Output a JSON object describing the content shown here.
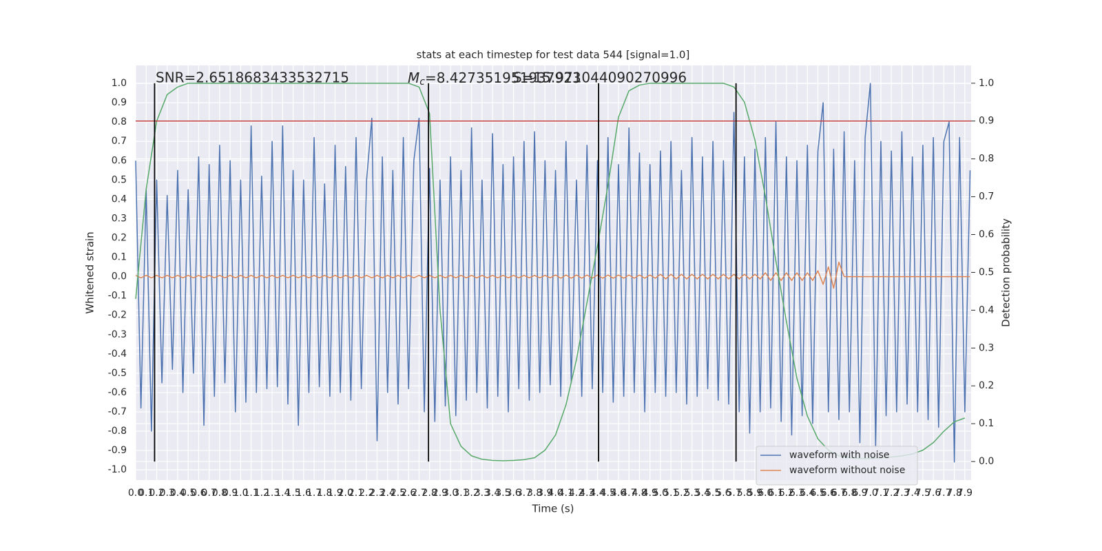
{
  "chart_data": {
    "type": "line",
    "title": "stats at each timestep for test data 544 [signal=1.0]",
    "xlabel": "Time (s)",
    "ylabel": "Whitened strain",
    "y2label": "Detection probability",
    "annotations": [
      {
        "text": "SNR=2.6518683433532715"
      },
      {
        "symbol": "M",
        "subscript": "c",
        "text": "=8.427351951937923"
      },
      {
        "text": "S=15.971044090270996"
      }
    ],
    "grid": true,
    "legend": "lower right",
    "xlim": [
      0,
      7.96
    ],
    "ylim": [
      -1.053,
      1.093
    ],
    "y2lim": [
      -0.049,
      1.047
    ],
    "xticks": [
      {
        "value": 0,
        "label": "0.0"
      },
      0.1,
      0.2,
      0.3,
      0.4,
      0.5,
      0.6,
      0.7,
      0.8,
      0.9,
      {
        "value": 1,
        "label": "1.0"
      },
      1.1,
      1.2,
      1.3,
      1.4,
      1.5,
      1.6,
      1.7,
      1.8,
      1.9,
      {
        "value": 2,
        "label": "2.0"
      },
      2.1,
      2.2,
      2.3,
      2.4,
      2.5,
      2.6,
      2.7,
      2.8,
      2.9,
      {
        "value": 3,
        "label": "3.0"
      },
      3.1,
      3.2,
      3.3,
      3.4,
      3.5,
      3.6,
      3.7,
      3.8,
      3.9,
      {
        "value": 4,
        "label": "4.0"
      },
      4.1,
      4.2,
      4.3,
      4.4,
      4.5,
      4.6,
      4.7,
      4.8,
      4.9,
      {
        "value": 5,
        "label": "5.0"
      },
      5.1,
      5.2,
      5.3,
      5.4,
      5.5,
      5.6,
      5.7,
      5.8,
      5.9,
      {
        "value": 6,
        "label": "6.0"
      },
      6.1,
      6.2,
      6.3,
      6.4,
      6.5,
      6.6,
      6.7,
      6.8,
      6.9,
      {
        "value": 7,
        "label": "7.0"
      },
      7.1,
      7.2,
      7.3,
      7.4,
      7.5,
      7.6,
      7.7,
      7.8,
      7.9
    ],
    "yticks": [
      {
        "value": -1,
        "label": "-1.0"
      },
      -0.9,
      -0.8,
      -0.7,
      -0.6,
      -0.5,
      -0.4,
      -0.3,
      -0.2,
      -0.1,
      {
        "value": 0,
        "label": "0.0"
      },
      0.1,
      0.2,
      0.3,
      0.4,
      0.5,
      0.6,
      0.7,
      0.8,
      0.9,
      {
        "value": 1,
        "label": "1.0"
      }
    ],
    "y2ticks": [
      {
        "value": 0,
        "label": "0.0"
      },
      0.1,
      0.2,
      0.3,
      0.4,
      0.5,
      0.6,
      0.7,
      0.8,
      0.9,
      {
        "value": 1,
        "label": "1.0"
      }
    ],
    "x": [
      0,
      0.05,
      0.1,
      0.15,
      0.2,
      0.25,
      0.3,
      0.35,
      0.4,
      0.45,
      0.5,
      0.55,
      0.6,
      0.65,
      0.7,
      0.75,
      0.8,
      0.85,
      0.9,
      0.95,
      1,
      1.05,
      1.1,
      1.15,
      1.2,
      1.25,
      1.3,
      1.35,
      1.4,
      1.45,
      1.5,
      1.55,
      1.6,
      1.65,
      1.7,
      1.75,
      1.8,
      1.85,
      1.9,
      1.95,
      2,
      2.05,
      2.1,
      2.15,
      2.2,
      2.25,
      2.3,
      2.35,
      2.4,
      2.45,
      2.5,
      2.55,
      2.6,
      2.65,
      2.7,
      2.75,
      2.8,
      2.85,
      2.9,
      2.95,
      3,
      3.05,
      3.1,
      3.15,
      3.2,
      3.25,
      3.3,
      3.35,
      3.4,
      3.45,
      3.5,
      3.55,
      3.6,
      3.65,
      3.7,
      3.75,
      3.8,
      3.85,
      3.9,
      3.95,
      4,
      4.05,
      4.1,
      4.15,
      4.2,
      4.25,
      4.3,
      4.35,
      4.4,
      4.45,
      4.5,
      4.55,
      4.6,
      4.65,
      4.7,
      4.75,
      4.8,
      4.85,
      4.9,
      4.95,
      5,
      5.05,
      5.1,
      5.15,
      5.2,
      5.25,
      5.3,
      5.35,
      5.4,
      5.45,
      5.5,
      5.55,
      5.6,
      5.65,
      5.7,
      5.75,
      5.8,
      5.85,
      5.9,
      5.95,
      6,
      6.05,
      6.1,
      6.15,
      6.2,
      6.25,
      6.3,
      6.35,
      6.4,
      6.45,
      6.5,
      6.55,
      6.6,
      6.65,
      6.7,
      6.75,
      6.8,
      6.85,
      6.9,
      6.95,
      7,
      7.05,
      7.1,
      7.15,
      7.2,
      7.25,
      7.3,
      7.35,
      7.4,
      7.45,
      7.5,
      7.55,
      7.6,
      7.65,
      7.7,
      7.75,
      7.8,
      7.85,
      7.9,
      7.95
    ],
    "series": [
      {
        "name": "waveform with noise",
        "color": "#4c72b0",
        "values": [
          0.6,
          -0.68,
          0.45,
          -0.8,
          0.5,
          -0.55,
          0.42,
          -0.48,
          0.55,
          -0.6,
          0.45,
          -0.5,
          0.62,
          -0.77,
          0.58,
          -0.62,
          0.68,
          -0.55,
          0.6,
          -0.7,
          0.5,
          -0.65,
          0.78,
          -0.6,
          0.52,
          -0.58,
          0.7,
          -0.57,
          0.78,
          -0.66,
          0.55,
          -0.77,
          0.5,
          -0.6,
          0.72,
          -0.57,
          0.48,
          -0.62,
          0.68,
          -0.6,
          0.57,
          -0.64,
          0.72,
          -0.58,
          0.5,
          0.82,
          -0.85,
          0.62,
          -0.6,
          0.55,
          -0.66,
          0.72,
          -0.58,
          0.6,
          0.82,
          -0.7,
          0.56,
          -0.75,
          0.5,
          -0.67,
          0.62,
          -0.72,
          0.55,
          -0.64,
          0.77,
          -0.6,
          0.5,
          -0.68,
          0.74,
          -0.62,
          0.58,
          -0.7,
          0.62,
          -0.58,
          0.7,
          -0.64,
          0.75,
          -0.6,
          0.6,
          -0.56,
          0.55,
          -0.62,
          0.7,
          -0.55,
          0.5,
          -0.62,
          0.68,
          -0.58,
          0.6,
          -0.6,
          0.72,
          -0.65,
          0.58,
          -0.62,
          0.77,
          -0.6,
          0.64,
          -0.7,
          0.58,
          -0.6,
          0.65,
          -0.62,
          0.7,
          -0.6,
          0.55,
          -0.66,
          0.72,
          -0.62,
          0.62,
          -0.58,
          0.7,
          -0.64,
          0.6,
          -0.66,
          0.85,
          -0.7,
          0.62,
          -0.81,
          0.66,
          -0.7,
          0.72,
          -0.68,
          0.8,
          -0.75,
          0.62,
          -0.82,
          0.6,
          -0.72,
          0.68,
          -0.76,
          0.65,
          0.9,
          -0.7,
          0.66,
          -0.74,
          0.75,
          -0.7,
          0.6,
          -0.86,
          0.72,
          1.0,
          -0.88,
          0.7,
          -0.72,
          0.65,
          -0.7,
          0.75,
          -0.66,
          0.62,
          -0.7,
          0.68,
          -0.74,
          0.72,
          -0.78,
          0.7,
          0.8,
          -0.96,
          0.72,
          -0.7,
          0.55
        ]
      },
      {
        "name": "waveform without noise",
        "color": "#dd8452",
        "values": [
          0.006,
          -0.006,
          0.006,
          -0.006,
          0.006,
          -0.006,
          0.006,
          -0.006,
          0.006,
          -0.006,
          0.006,
          -0.006,
          0.006,
          -0.006,
          0.006,
          -0.006,
          0.006,
          -0.006,
          0.006,
          -0.006,
          0.006,
          -0.006,
          0.006,
          -0.006,
          0.006,
          -0.006,
          0.006,
          -0.006,
          0.006,
          -0.006,
          0.006,
          -0.006,
          0.006,
          -0.006,
          0.006,
          -0.006,
          0.006,
          -0.006,
          0.006,
          -0.006,
          0.006,
          -0.006,
          0.006,
          -0.006,
          0.006,
          -0.006,
          0.006,
          -0.006,
          0.006,
          -0.006,
          0.006,
          -0.006,
          0.006,
          -0.006,
          0.006,
          -0.006,
          0.006,
          -0.006,
          0.006,
          -0.006,
          0.006,
          -0.006,
          0.006,
          -0.006,
          0.006,
          -0.006,
          0.006,
          -0.006,
          0.006,
          -0.006,
          0.006,
          -0.006,
          0.006,
          -0.006,
          0.006,
          -0.006,
          0.006,
          -0.006,
          0.006,
          -0.006,
          0.008,
          -0.008,
          0.008,
          -0.008,
          0.008,
          -0.008,
          0.008,
          -0.008,
          0.008,
          -0.008,
          0.008,
          -0.008,
          0.008,
          -0.008,
          0.008,
          -0.008,
          0.008,
          -0.008,
          0.008,
          -0.008,
          0.012,
          -0.012,
          0.012,
          -0.012,
          0.012,
          -0.012,
          0.012,
          -0.012,
          0.012,
          -0.012,
          0.012,
          -0.012,
          0.012,
          -0.012,
          0.012,
          -0.012,
          0.012,
          -0.012,
          0.012,
          -0.012,
          0.02,
          -0.02,
          0.02,
          -0.02,
          0.02,
          -0.02,
          0.02,
          -0.02,
          0.02,
          -0.02,
          0.03,
          -0.04,
          0.05,
          -0.06,
          0.075,
          0,
          0,
          0,
          0,
          0,
          0,
          0,
          0,
          0,
          0,
          0,
          0,
          0,
          0,
          0,
          0,
          0,
          0,
          0,
          0,
          0,
          0,
          0,
          0,
          0
        ]
      },
      {
        "color": "#55a868",
        "axis": "y2",
        "x": [
          0,
          0.1,
          0.2,
          0.3,
          0.4,
          0.5,
          0.6,
          0.7,
          0.8,
          0.9,
          1,
          1.1,
          1.2,
          1.3,
          1.4,
          1.5,
          1.6,
          1.7,
          1.8,
          1.9,
          2,
          2.1,
          2.2,
          2.3,
          2.4,
          2.5,
          2.6,
          2.7,
          2.8,
          2.9,
          3,
          3.1,
          3.2,
          3.3,
          3.4,
          3.5,
          3.6,
          3.7,
          3.8,
          3.9,
          4,
          4.1,
          4.2,
          4.3,
          4.4,
          4.5,
          4.6,
          4.7,
          4.8,
          4.9,
          5,
          5.1,
          5.2,
          5.3,
          5.4,
          5.5,
          5.6,
          5.7,
          5.8,
          5.9,
          6,
          6.1,
          6.2,
          6.3,
          6.4,
          6.5,
          6.6,
          6.7,
          6.8,
          6.9,
          7,
          7.1,
          7.2,
          7.3,
          7.4,
          7.5,
          7.6,
          7.7,
          7.8,
          7.9
        ],
        "values": [
          0.43,
          0.72,
          0.9,
          0.97,
          0.99,
          1,
          1,
          1,
          1,
          1,
          1,
          1,
          1,
          1,
          1,
          1,
          1,
          1,
          1,
          1,
          1,
          1,
          1,
          1,
          1,
          1,
          1,
          0.99,
          0.92,
          0.4,
          0.1,
          0.04,
          0.015,
          0.006,
          0.003,
          0.002,
          0.003,
          0.005,
          0.01,
          0.03,
          0.07,
          0.15,
          0.27,
          0.42,
          0.57,
          0.73,
          0.91,
          0.98,
          0.995,
          1,
          1,
          1,
          1,
          1,
          1,
          1,
          1,
          0.99,
          0.95,
          0.85,
          0.7,
          0.53,
          0.37,
          0.22,
          0.12,
          0.06,
          0.03,
          0.015,
          0.01,
          0.008,
          0.008,
          0.01,
          0.012,
          0.015,
          0.02,
          0.03,
          0.05,
          0.08,
          0.105,
          0.115
        ]
      }
    ],
    "threshold": {
      "value": 0.9,
      "axis": "y2",
      "color": "#c03d3e"
    },
    "vlines": {
      "values": [
        0.18,
        2.79,
        4.41,
        5.72
      ],
      "color": "#000000"
    }
  }
}
